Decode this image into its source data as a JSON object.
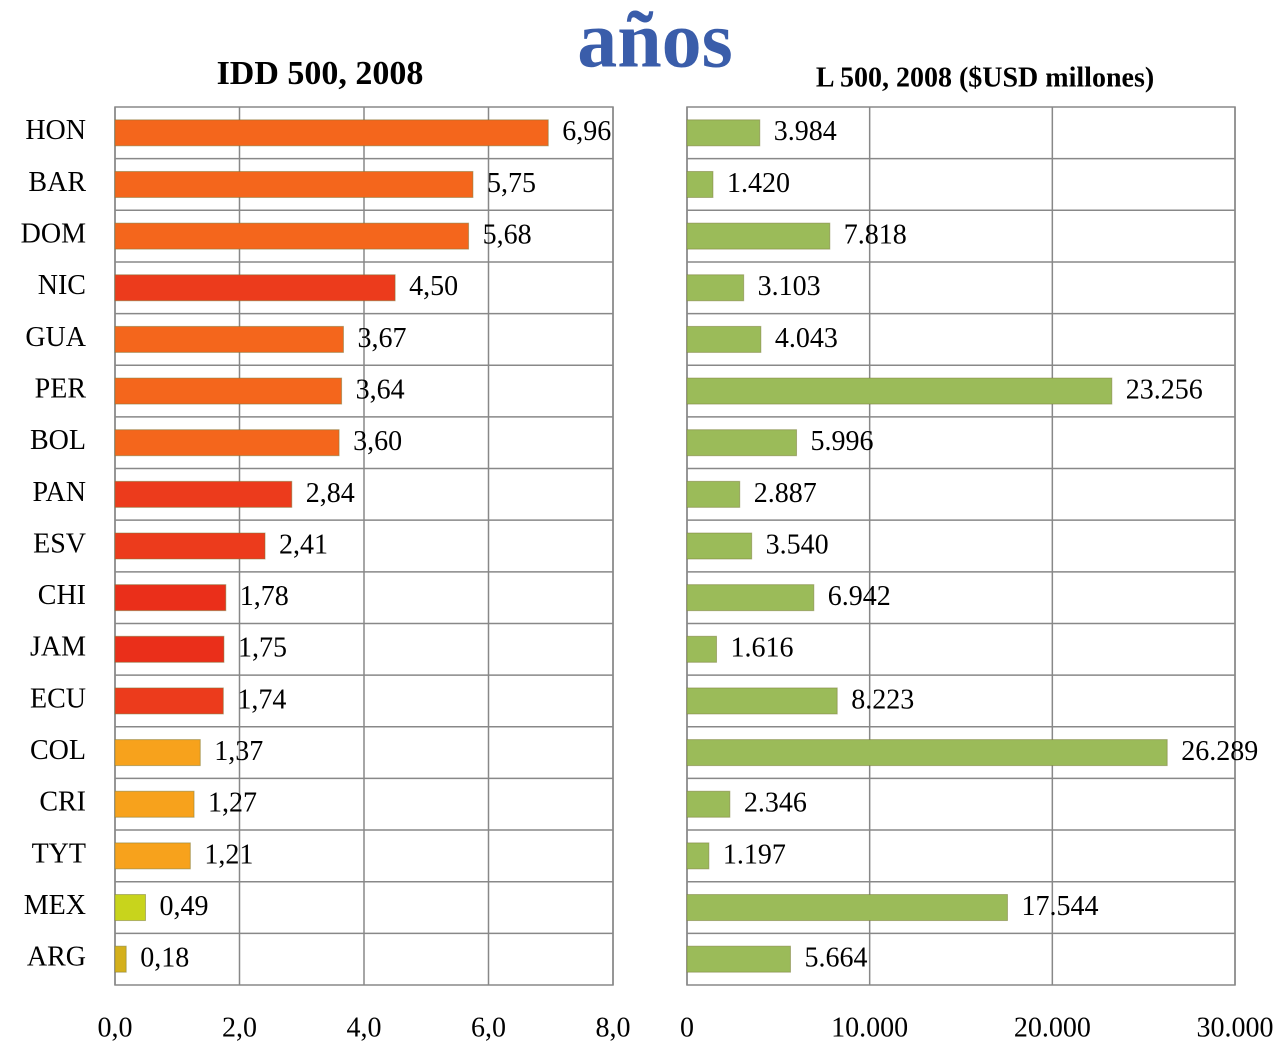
{
  "heading": "años",
  "chart_data": [
    {
      "type": "barh",
      "title": "IDD 500, 2008",
      "categories": [
        "HON",
        "BAR",
        "DOM",
        "NIC",
        "GUA",
        "PER",
        "BOL",
        "PAN",
        "ESV",
        "CHI",
        "JAM",
        "ECU",
        "COL",
        "CRI",
        "TYT",
        "MEX",
        "ARG"
      ],
      "values": [
        6.96,
        5.75,
        5.68,
        4.5,
        3.67,
        3.64,
        3.6,
        2.84,
        2.41,
        1.78,
        1.75,
        1.74,
        1.37,
        1.27,
        1.21,
        0.49,
        0.18
      ],
      "value_labels": [
        "6,96",
        "5,75",
        "5,68",
        "4,50",
        "3,67",
        "3,64",
        "3,60",
        "2,84",
        "2,41",
        "1,78",
        "1,75",
        "1,74",
        "1,37",
        "1,27",
        "1,21",
        "0,49",
        "0,18"
      ],
      "colors": [
        "#f4661c",
        "#f4661c",
        "#f4661c",
        "#ec3b1c",
        "#f4661c",
        "#f4661c",
        "#f4661c",
        "#ec3b1c",
        "#ec3b1c",
        "#ea2f1a",
        "#ea2f1a",
        "#ec3b1c",
        "#f7a21c",
        "#f7a21c",
        "#f7a21c",
        "#c8d41c",
        "#d4b01c"
      ],
      "xlim": [
        0,
        8
      ],
      "xticks": [
        {
          "value": 0,
          "label": "0,0"
        },
        {
          "value": 2,
          "label": "2,0"
        },
        {
          "value": 4,
          "label": "4,0"
        },
        {
          "value": 6,
          "label": "6,0"
        },
        {
          "value": 8,
          "label": "8,0"
        }
      ],
      "grid": true
    },
    {
      "type": "barh",
      "title": "L 500, 2008 ($USD millones)",
      "values": [
        3984,
        1420,
        7818,
        3103,
        4043,
        23256,
        5996,
        2887,
        3540,
        6942,
        1616,
        8223,
        26289,
        2346,
        1197,
        17544,
        5664
      ],
      "value_labels": [
        "3.984",
        "1.420",
        "7.818",
        "3.103",
        "4.043",
        "23.256",
        "5.996",
        "2.887",
        "3.540",
        "6.942",
        "1.616",
        "8.223",
        "26.289",
        "2.346",
        "1.197",
        "17.544",
        "5.664"
      ],
      "color": "#9bbb59",
      "xlim": [
        0,
        30000
      ],
      "xticks": [
        0,
        {
          "value": 10000,
          "label": "10.000"
        },
        {
          "value": 20000,
          "label": "20.000"
        },
        {
          "value": 30000,
          "label": "30.000"
        }
      ],
      "grid": true
    }
  ]
}
